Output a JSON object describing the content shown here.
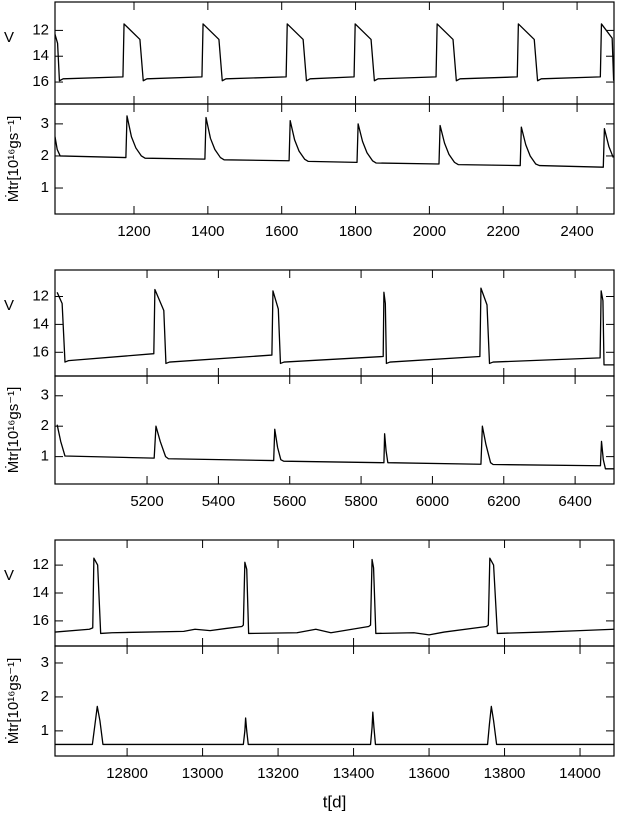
{
  "chart_data": [
    {
      "type": "line",
      "ylabel": "V",
      "xlim": [
        986,
        2500
      ],
      "ylim": [
        17.7,
        9.8
      ],
      "yticks": [
        12,
        14,
        16
      ],
      "x": [
        986,
        993,
        998,
        1008,
        1170,
        1173,
        1216,
        1225,
        1235,
        1384,
        1387,
        1430,
        1439,
        1449,
        1612,
        1615,
        1658,
        1667,
        1677,
        1796,
        1799,
        1842,
        1851,
        1861,
        2018,
        2021,
        2064,
        2073,
        2083,
        2238,
        2241,
        2284,
        2293,
        2303,
        2463,
        2466,
        2495,
        2499
      ],
      "values": [
        12.3,
        13.0,
        15.9,
        15.75,
        15.6,
        11.5,
        12.7,
        15.9,
        15.75,
        15.6,
        11.5,
        12.7,
        15.9,
        15.75,
        15.6,
        11.5,
        12.7,
        15.9,
        15.75,
        15.6,
        11.5,
        12.7,
        15.9,
        15.75,
        15.6,
        11.5,
        12.7,
        15.9,
        15.75,
        15.6,
        11.5,
        12.7,
        15.9,
        15.75,
        15.6,
        11.5,
        12.6,
        15.9
      ]
    },
    {
      "type": "line",
      "ylabel": "Ṁtr[10¹⁶gs⁻¹]",
      "xlim": [
        986,
        2500
      ],
      "ylim": [
        0.19,
        3.62
      ],
      "yticks": [
        1,
        2,
        3
      ],
      "xticks": [
        1200,
        1400,
        1600,
        1800,
        2000,
        2200,
        2400
      ],
      "x": [
        986,
        992,
        1000,
        1178,
        1181,
        1193,
        1205,
        1220,
        1230,
        1392,
        1395,
        1407,
        1419,
        1434,
        1444,
        1620,
        1623,
        1635,
        1647,
        1662,
        1672,
        1804,
        1807,
        1819,
        1831,
        1846,
        1856,
        2026,
        2029,
        2041,
        2053,
        2068,
        2078,
        2246,
        2249,
        2261,
        2273,
        2288,
        2298,
        2471,
        2474,
        2486,
        2498
      ],
      "values": [
        2.6,
        2.2,
        2.0,
        1.95,
        3.25,
        2.6,
        2.25,
        2.0,
        1.93,
        1.9,
        3.2,
        2.55,
        2.2,
        1.95,
        1.88,
        1.85,
        3.1,
        2.5,
        2.15,
        1.9,
        1.83,
        1.8,
        3.0,
        2.45,
        2.1,
        1.85,
        1.78,
        1.75,
        2.95,
        2.4,
        2.05,
        1.8,
        1.73,
        1.7,
        2.9,
        2.35,
        2.0,
        1.75,
        1.7,
        1.65,
        2.85,
        2.3,
        1.95
      ]
    },
    {
      "type": "line",
      "ylabel": "V",
      "xlim": [
        4942,
        6509
      ],
      "ylim": [
        17.7,
        10.1
      ],
      "yticks": [
        12,
        14,
        16
      ],
      "x": [
        4948,
        4962,
        4970,
        4980,
        5219,
        5222,
        5247,
        5253,
        5263,
        5550,
        5553,
        5568,
        5574,
        5584,
        5862,
        5864,
        5868,
        5871,
        5881,
        6133,
        6136,
        6153,
        6160,
        6170,
        6470,
        6473,
        6478,
        6481,
        6509
      ],
      "values": [
        11.7,
        12.5,
        16.7,
        16.6,
        16.1,
        11.5,
        13.0,
        16.8,
        16.7,
        16.2,
        11.6,
        12.9,
        16.8,
        16.7,
        16.3,
        11.7,
        12.5,
        16.8,
        16.7,
        16.3,
        11.4,
        12.6,
        16.8,
        16.7,
        16.4,
        11.6,
        12.3,
        16.9,
        16.9
      ]
    },
    {
      "type": "line",
      "ylabel": "Ṁtr[10¹⁶gs⁻¹]",
      "xlim": [
        4942,
        6509
      ],
      "ylim": [
        0.1,
        3.65
      ],
      "yticks": [
        1,
        2,
        3
      ],
      "xticks": [
        5200,
        5400,
        5600,
        5800,
        6000,
        6200,
        6400
      ],
      "x": [
        4948,
        4958,
        4970,
        5220,
        5225,
        5237,
        5252,
        5260,
        5555,
        5558,
        5566,
        5575,
        5583,
        5864,
        5866,
        5870,
        5875,
        6136,
        6140,
        6150,
        6163,
        6170,
        6471,
        6474,
        6479,
        6485,
        6509
      ],
      "values": [
        2.05,
        1.5,
        1.02,
        0.95,
        2.0,
        1.5,
        1.0,
        0.93,
        0.87,
        1.9,
        1.3,
        0.9,
        0.85,
        0.8,
        1.75,
        1.2,
        0.8,
        0.75,
        2.0,
        1.4,
        0.8,
        0.74,
        0.7,
        1.5,
        0.9,
        0.6,
        0.6
      ]
    },
    {
      "type": "line",
      "ylabel": "V",
      "xlim": [
        12609,
        14090
      ],
      "ylim": [
        17.8,
        10.2
      ],
      "yticks": [
        12,
        14,
        16
      ],
      "x": [
        12609,
        12700,
        12709,
        12712,
        12722,
        12730,
        12760,
        12950,
        12980,
        13020,
        13060,
        13104,
        13108,
        13112,
        13117,
        13122,
        13250,
        13300,
        13340,
        13440,
        13445,
        13449,
        13453,
        13459,
        13560,
        13600,
        13640,
        13752,
        13757,
        13761,
        13771,
        13781,
        13900,
        14000,
        14090
      ],
      "values": [
        16.8,
        16.6,
        16.5,
        11.5,
        12.0,
        16.9,
        16.85,
        16.75,
        16.6,
        16.7,
        16.55,
        16.4,
        16.3,
        11.8,
        12.3,
        16.9,
        16.85,
        16.6,
        16.85,
        16.4,
        16.3,
        11.6,
        12.2,
        16.9,
        16.85,
        17.0,
        16.8,
        16.4,
        16.3,
        11.5,
        12.0,
        16.9,
        16.8,
        16.7,
        16.6
      ]
    },
    {
      "type": "line",
      "ylabel": "Ṁtr[10¹⁶gs⁻¹]",
      "xlabel": "t[d]",
      "xlim": [
        12609,
        14090
      ],
      "ylim": [
        0.26,
        3.5
      ],
      "yticks": [
        1,
        2,
        3
      ],
      "xticks": [
        12800,
        13000,
        13200,
        13400,
        13600,
        13800,
        14000
      ],
      "x": [
        12609,
        12708,
        12715,
        12721,
        12728,
        12736,
        13108,
        13112,
        13114,
        13117,
        13121,
        13445,
        13449,
        13451,
        13454,
        13458,
        13755,
        13760,
        13765,
        13771,
        13779,
        14090
      ],
      "values": [
        0.6,
        0.6,
        1.2,
        1.72,
        1.3,
        0.6,
        0.6,
        1.0,
        1.38,
        1.0,
        0.6,
        0.6,
        1.1,
        1.55,
        1.1,
        0.6,
        0.6,
        1.2,
        1.72,
        1.3,
        0.6,
        0.6
      ]
    }
  ]
}
